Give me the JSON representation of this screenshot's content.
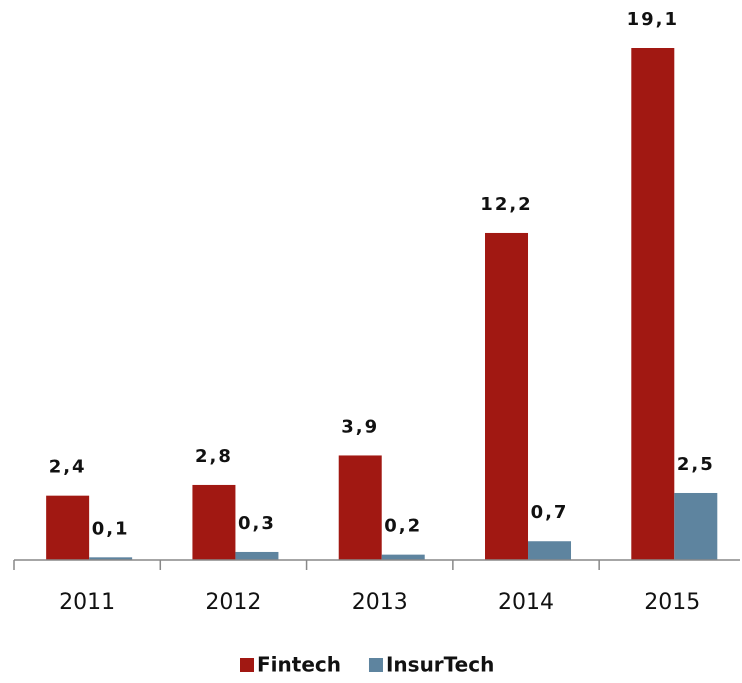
{
  "chart_data": {
    "type": "bar",
    "categories": [
      "2011",
      "2012",
      "2013",
      "2014",
      "2015"
    ],
    "series": [
      {
        "name": "Fintech",
        "color": "#a11812",
        "values": [
          2.4,
          2.8,
          3.9,
          12.2,
          19.1
        ],
        "value_labels": [
          "2,4",
          "2,8",
          "3,9",
          "12,2",
          "19,1"
        ]
      },
      {
        "name": "InsurTech",
        "color": "#5e849f",
        "values": [
          0.1,
          0.3,
          0.2,
          0.7,
          2.5
        ],
        "value_labels": [
          "0,1",
          "0,3",
          "0,2",
          "0,7",
          "2,5"
        ]
      }
    ],
    "legend": "bottom"
  }
}
